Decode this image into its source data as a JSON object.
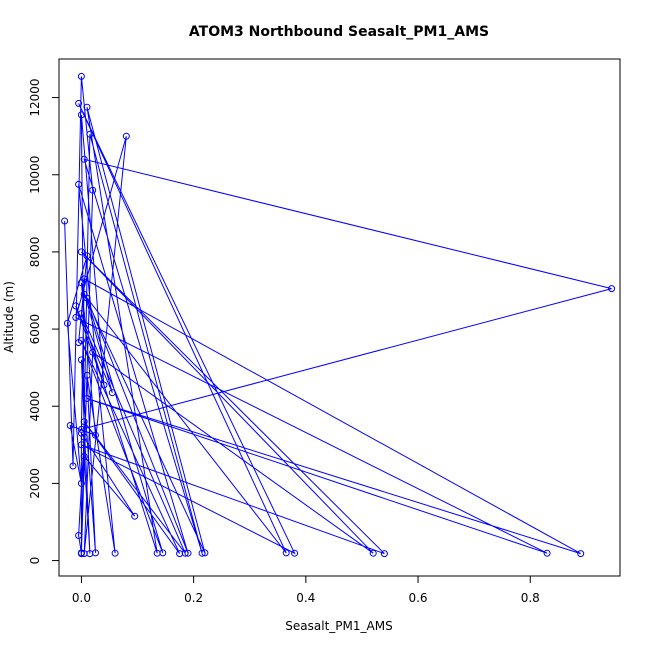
{
  "chart_data": {
    "type": "line",
    "title": "ATOM3 Northbound Seasalt_PM1_AMS",
    "xlabel": "Seasalt_PM1_AMS",
    "ylabel": "Altitude (m)",
    "xlim": [
      -0.04,
      0.96
    ],
    "ylim": [
      -400,
      13000
    ],
    "x_ticks": [
      0.0,
      0.2,
      0.4,
      0.6,
      0.8
    ],
    "x_tick_labels": [
      "0.0",
      "0.2",
      "0.4",
      "0.6",
      "0.8"
    ],
    "y_ticks": [
      0,
      2000,
      4000,
      6000,
      8000,
      10000,
      12000
    ],
    "y_tick_labels": [
      "0",
      "2000",
      "4000",
      "6000",
      "8000",
      "10000",
      "12000"
    ],
    "grid": false,
    "color": "#0000ff",
    "series": [
      {
        "points": [
          [
            -0.03,
            8800
          ],
          [
            -0.015,
            2450
          ],
          [
            0.0,
            12550
          ],
          [
            0.02,
            9600
          ],
          [
            0.0,
            180
          ],
          [
            0.015,
            11050
          ],
          [
            0.215,
            190
          ],
          [
            0.005,
            10400
          ],
          [
            0.945,
            7050
          ],
          [
            0.0,
            3400
          ],
          [
            0.005,
            7300
          ],
          [
            0.89,
            180
          ],
          [
            0.01,
            4200
          ],
          [
            0.83,
            190
          ],
          [
            -0.01,
            6300
          ],
          [
            0.08,
            11000
          ],
          [
            0.005,
            180
          ],
          [
            0.02,
            5400
          ],
          [
            0.52,
            190
          ],
          [
            0.0,
            8000
          ],
          [
            0.54,
            180
          ],
          [
            0.0,
            3000
          ],
          [
            0.38,
            190
          ],
          [
            -0.005,
            11850
          ],
          [
            0.365,
            200
          ],
          [
            0.005,
            6900
          ],
          [
            0.22,
            200
          ],
          [
            0.01,
            11750
          ],
          [
            0.135,
            190
          ],
          [
            0.0,
            6400
          ],
          [
            0.185,
            190
          ],
          [
            0.005,
            3600
          ],
          [
            0.175,
            180
          ],
          [
            0.0,
            5700
          ],
          [
            0.145,
            200
          ],
          [
            0.01,
            6800
          ],
          [
            0.19,
            190
          ],
          [
            -0.005,
            9750
          ],
          [
            0.06,
            190
          ],
          [
            0.01,
            4800
          ],
          [
            0.025,
            200
          ],
          [
            0.0,
            5200
          ],
          [
            0.015,
            180
          ],
          [
            0.005,
            2700
          ],
          [
            0.095,
            1150
          ],
          [
            0.0,
            3300
          ],
          [
            0.0,
            200
          ],
          [
            -0.005,
            650
          ],
          [
            0.005,
            3200
          ],
          [
            0.0,
            11550
          ],
          [
            0.04,
            4550
          ],
          [
            -0.01,
            6600
          ],
          [
            0.055,
            4350
          ],
          [
            0.0,
            7200
          ],
          [
            0.025,
            3250
          ],
          [
            -0.02,
            3500
          ],
          [
            0.0,
            2000
          ],
          [
            -0.025,
            6150
          ],
          [
            0.01,
            7900
          ],
          [
            -0.005,
            5650
          ]
        ]
      }
    ]
  }
}
